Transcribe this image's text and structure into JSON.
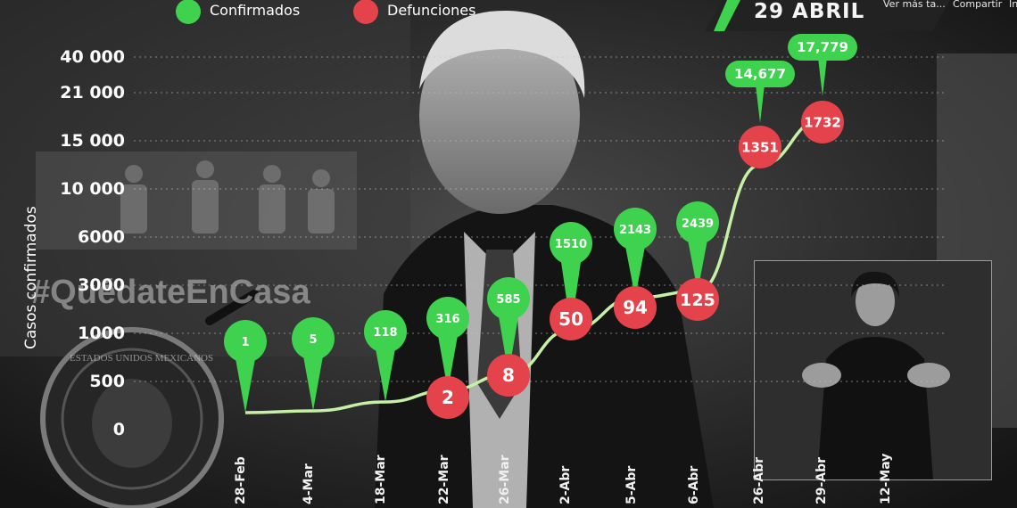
{
  "header": {
    "date_label": "29 ABRIL",
    "links": [
      "Ver más ta...",
      "Compartir",
      "In"
    ]
  },
  "legend": [
    {
      "label": "Confirmados",
      "color": "#3fd24f"
    },
    {
      "label": "Defunciones",
      "color": "#e5434b"
    }
  ],
  "background": {
    "banner_text": "#QuédateEnCasa",
    "seal_text": "ESTADOS UNIDOS MEXICANOS"
  },
  "chart_data": {
    "type": "line",
    "ylabel": "Casos confirmados",
    "ytick_labels": [
      "0",
      "500",
      "1000",
      "3000",
      "6000",
      "10 000",
      "15 000",
      "21 000",
      "40 000"
    ],
    "x": [
      "28-Feb",
      "4-Mar",
      "18-Mar",
      "22-Mar",
      "26-Mar",
      "2-Abr",
      "5-Abr",
      "6-Abr",
      "26-Abr",
      "29-Abr",
      "12-May"
    ],
    "series": [
      {
        "name": "Confirmados",
        "color": "#3fd24f",
        "labels": [
          "1",
          "5",
          "118",
          "316",
          "585",
          "1510",
          "2143",
          "2439",
          "14,677",
          "17,779"
        ]
      },
      {
        "name": "Defunciones",
        "color": "#e5434b",
        "x_index": [
          3,
          4,
          5,
          6,
          7,
          8,
          9
        ],
        "labels": [
          "2",
          "8",
          "50",
          "94",
          "125",
          "1351",
          "1732"
        ]
      }
    ]
  }
}
